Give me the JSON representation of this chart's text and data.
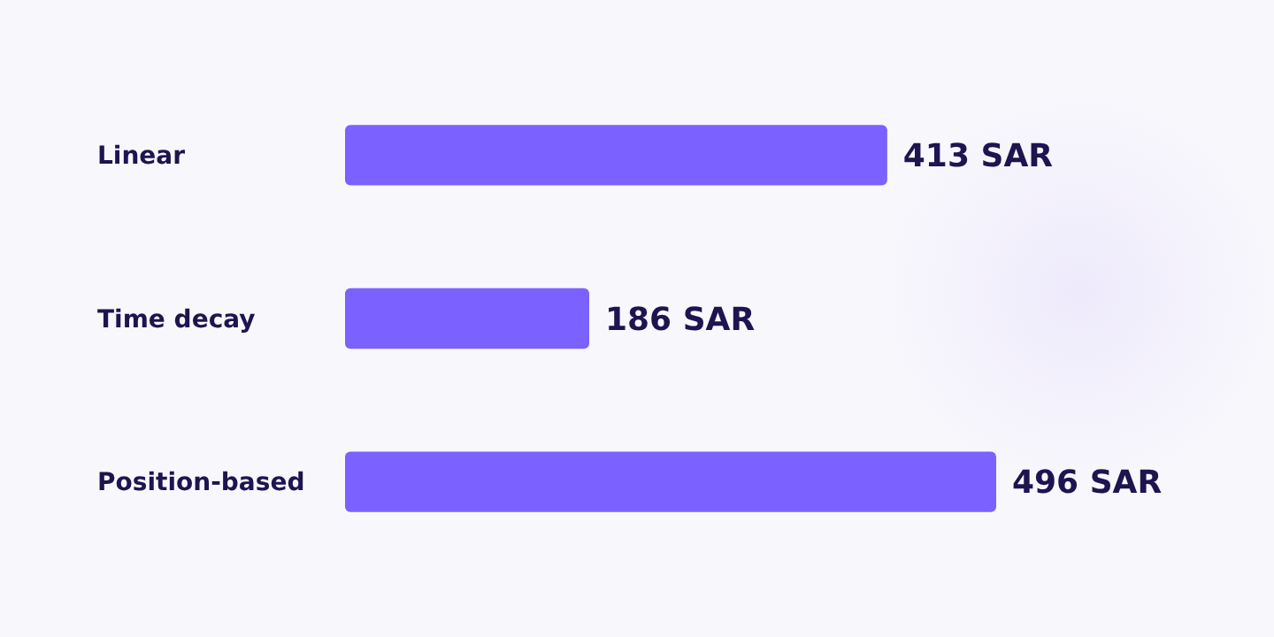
{
  "chart_data": {
    "type": "bar",
    "orientation": "horizontal",
    "categories": [
      "Linear",
      "Time decay",
      "Position-based"
    ],
    "values": [
      413,
      186,
      496
    ],
    "value_labels": [
      "413 SAR",
      "186 SAR",
      "496 SAR"
    ],
    "color": "#7b61ff"
  }
}
